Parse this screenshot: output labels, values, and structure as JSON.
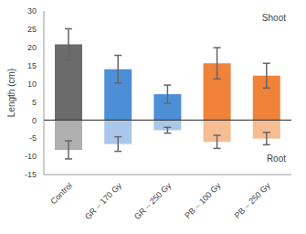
{
  "chart_data": {
    "type": "bar",
    "y_label": "Length (cm)",
    "categories": [
      "Control",
      "GR – 170 Gy",
      "GR – 250 Gy",
      "PB – 100 Gy",
      "PB – 250 Gy"
    ],
    "series": [
      {
        "name": "Shoot",
        "values": [
          20.8,
          14.0,
          7.1,
          15.6,
          12.2
        ],
        "errors": [
          4.3,
          3.8,
          2.5,
          4.3,
          3.4
        ],
        "colors": [
          "#6b6b6b",
          "#4d8fd6",
          "#4d8fd6",
          "#f0823a",
          "#f0823a"
        ]
      },
      {
        "name": "Root",
        "values": [
          -8.2,
          -6.6,
          -2.8,
          -6.0,
          -5.1
        ],
        "errors": [
          2.5,
          2.0,
          0.8,
          1.8,
          1.7
        ],
        "colors": [
          "#b0b0b0",
          "#a9c7ea",
          "#a9c7ea",
          "#f6bc92",
          "#f6bc92"
        ]
      }
    ],
    "ylim": [
      -15,
      30
    ],
    "yticks": [
      -15,
      -10,
      -5,
      0,
      5,
      10,
      15,
      20,
      25,
      30
    ],
    "grid": false
  }
}
